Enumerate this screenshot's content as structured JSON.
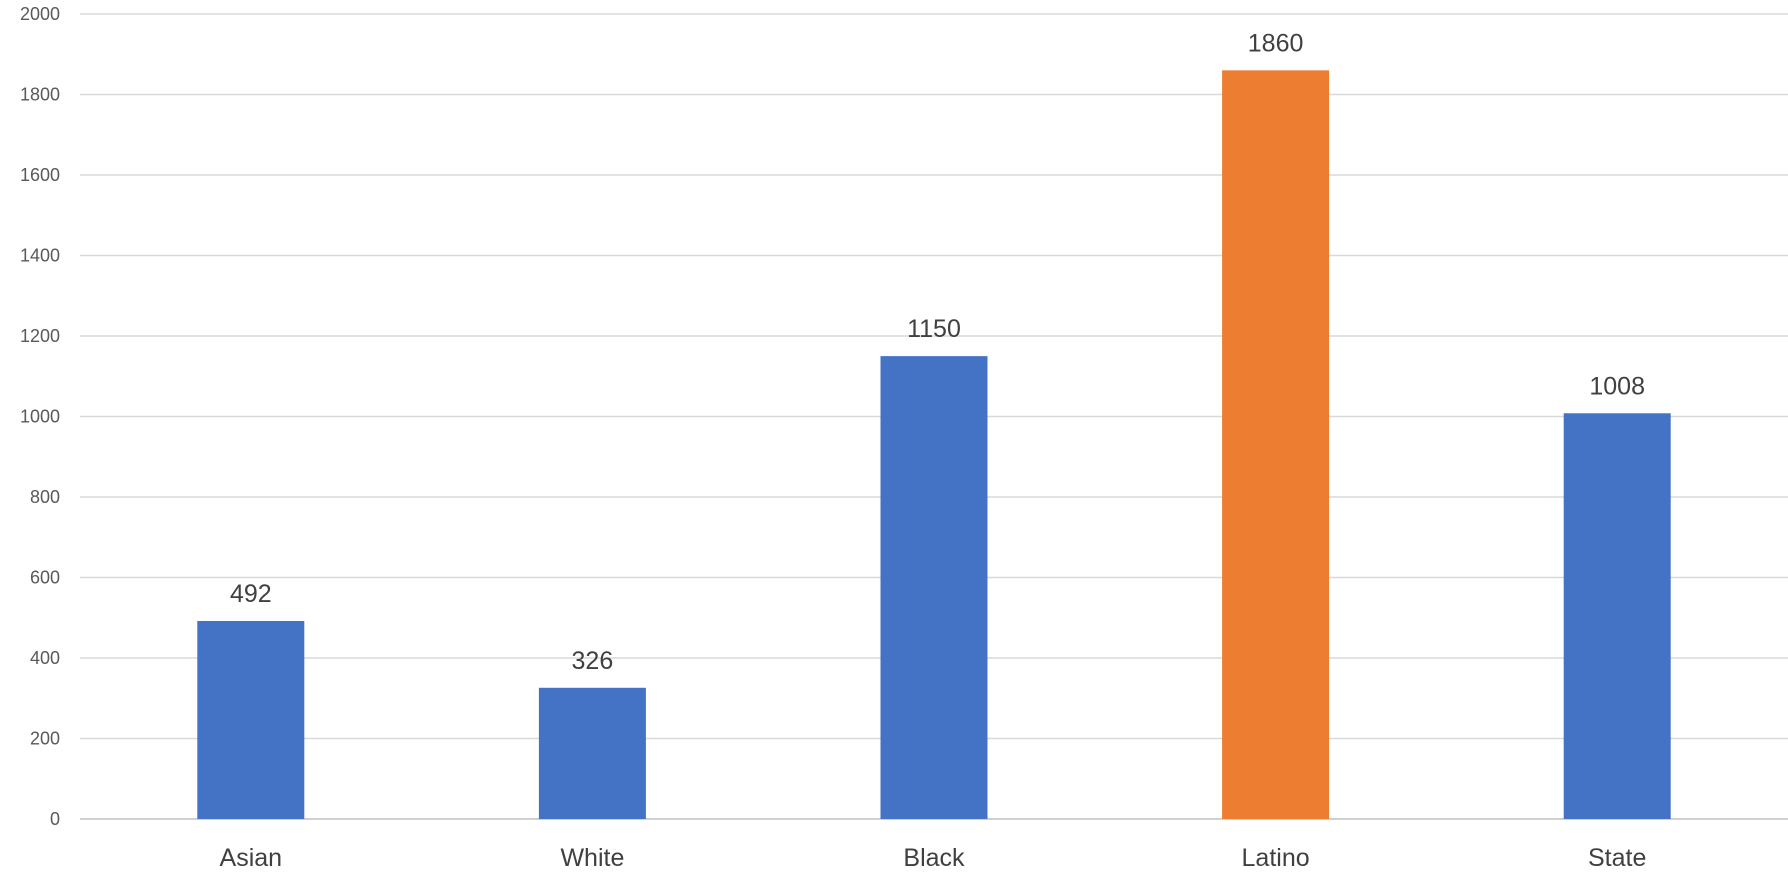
{
  "chart_data": {
    "type": "bar",
    "title": "",
    "xlabel": "",
    "ylabel": "",
    "categories": [
      "Asian",
      "White",
      "Black",
      "Latino",
      "State"
    ],
    "values": [
      492,
      326,
      1150,
      1860,
      1008
    ],
    "data_labels": [
      "492",
      "326",
      "1150",
      "1860",
      "1008"
    ],
    "ylim": [
      0,
      2000
    ],
    "yticks": [
      0,
      200,
      400,
      600,
      800,
      1000,
      1200,
      1400,
      1600,
      1800,
      2000
    ],
    "ytick_labels": [
      "0",
      "200",
      "400",
      "600",
      "800",
      "1000",
      "1200",
      "1400",
      "1600",
      "1800",
      "2000"
    ],
    "grid": true,
    "legend": "none",
    "colors": {
      "default_bar": "#4472C4",
      "highlight_bar": "#ED7D31",
      "highlight_category": "Latino"
    }
  }
}
